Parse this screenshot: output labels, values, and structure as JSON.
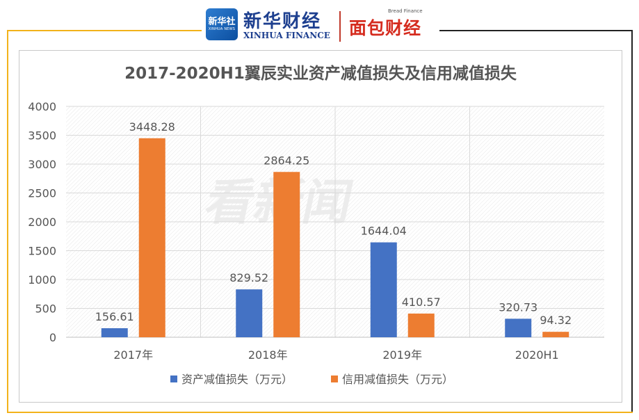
{
  "branding": {
    "xinhua_logo_cn": "新华社",
    "xinhua_logo_en": "XINHUA NEWS",
    "xinhua_finance_cn": "新华财经",
    "xinhua_finance_en": "XINHUA FINANCE",
    "bread_finance_en": "Bread Finance",
    "bread_finance_cn": "面包财经",
    "watermark": "看新闻"
  },
  "colors": {
    "series1": "#4472c4",
    "series2": "#ed7d31",
    "frame_accent": "#f2b21a"
  },
  "chart_data": {
    "type": "bar",
    "title": "2017-2020H1翼辰实业资产减值损失及信用减值损失",
    "categories": [
      "2017年",
      "2018年",
      "2019年",
      "2020H1"
    ],
    "series": [
      {
        "name": "资产减值损失（万元）",
        "values": [
          156.61,
          829.52,
          1644.04,
          320.73
        ],
        "labels": [
          "156.61",
          "829.52",
          "1644.04",
          "320.73"
        ]
      },
      {
        "name": "信用减值损失（万元）",
        "values": [
          3448.28,
          2864.25,
          410.57,
          94.32
        ],
        "labels": [
          "3448.28",
          "2864.25",
          "410.57",
          "94.32"
        ]
      }
    ],
    "ylim": [
      0,
      4000
    ],
    "yticks": [
      "0",
      "500",
      "1000",
      "1500",
      "2000",
      "2500",
      "3000",
      "3500",
      "4000"
    ],
    "grid": true,
    "legend": "bottom"
  }
}
